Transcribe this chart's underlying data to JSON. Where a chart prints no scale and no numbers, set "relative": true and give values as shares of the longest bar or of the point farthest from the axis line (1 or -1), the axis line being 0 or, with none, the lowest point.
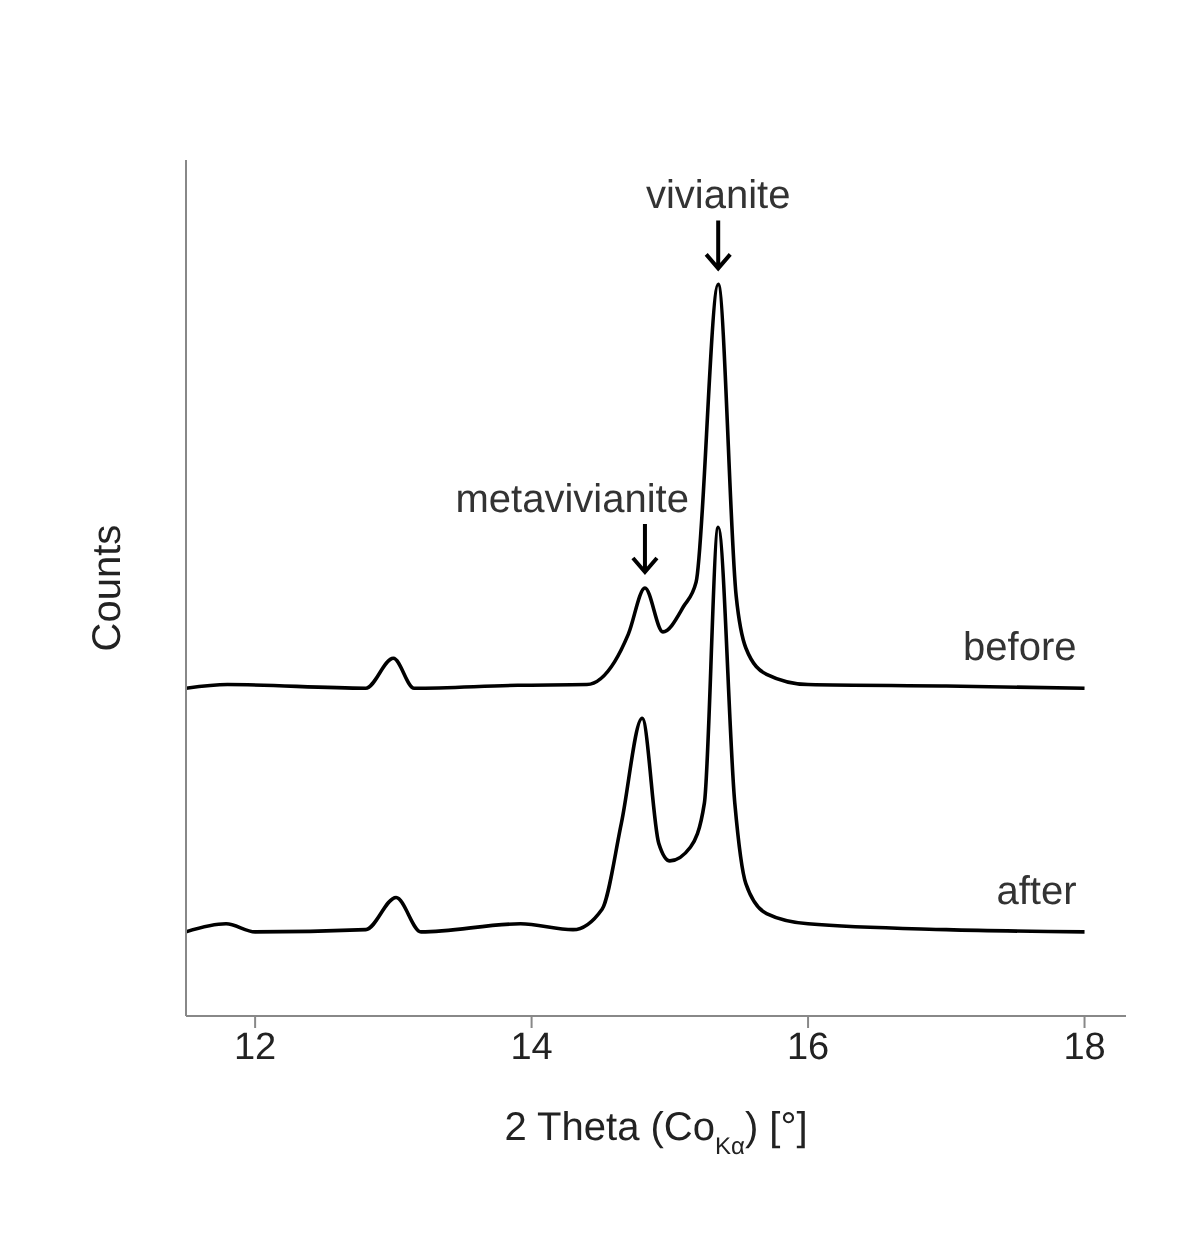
{
  "chart_data": {
    "type": "line",
    "relative": true,
    "xlabel": "2 Theta (Co$_{Kα}$) [°]",
    "ylabel": "Counts",
    "xlim": [
      11.5,
      18.3
    ],
    "xticks": [
      12,
      14,
      16,
      18
    ],
    "grid": false,
    "legend": false,
    "marker": "none",
    "line_style": "solid",
    "annotations": [
      {
        "text": "metavivianite",
        "x": 14.82,
        "y": 0.585
      },
      {
        "text": "vivianite",
        "x": 15.35,
        "y": 1.0
      }
    ],
    "series": [
      {
        "name": "before",
        "color": "#000000",
        "x": [
          11.5,
          11.8,
          12.8,
          13.0,
          13.15,
          13.9,
          14.4,
          14.6,
          14.7,
          14.82,
          14.95,
          15.1,
          15.19,
          15.35,
          15.48,
          15.55,
          15.7,
          16.0,
          17.0,
          18.0
        ],
        "values": [
          0.448,
          0.453,
          0.448,
          0.489,
          0.448,
          0.452,
          0.453,
          0.484,
          0.522,
          0.585,
          0.525,
          0.56,
          0.593,
          1.0,
          0.574,
          0.503,
          0.467,
          0.453,
          0.451,
          0.448
        ]
      },
      {
        "name": "after",
        "color": "#000000",
        "x": [
          11.5,
          11.79,
          12.0,
          12.8,
          13.02,
          13.2,
          13.92,
          14.3,
          14.51,
          14.65,
          14.8,
          14.92,
          15.0,
          15.15,
          15.25,
          15.35,
          15.47,
          15.55,
          15.7,
          16.0,
          17.0,
          18.0
        ],
        "values": [
          0.115,
          0.126,
          0.115,
          0.118,
          0.162,
          0.115,
          0.126,
          0.118,
          0.146,
          0.264,
          0.407,
          0.236,
          0.212,
          0.231,
          0.291,
          0.668,
          0.291,
          0.181,
          0.14,
          0.126,
          0.118,
          0.115
        ]
      }
    ]
  }
}
